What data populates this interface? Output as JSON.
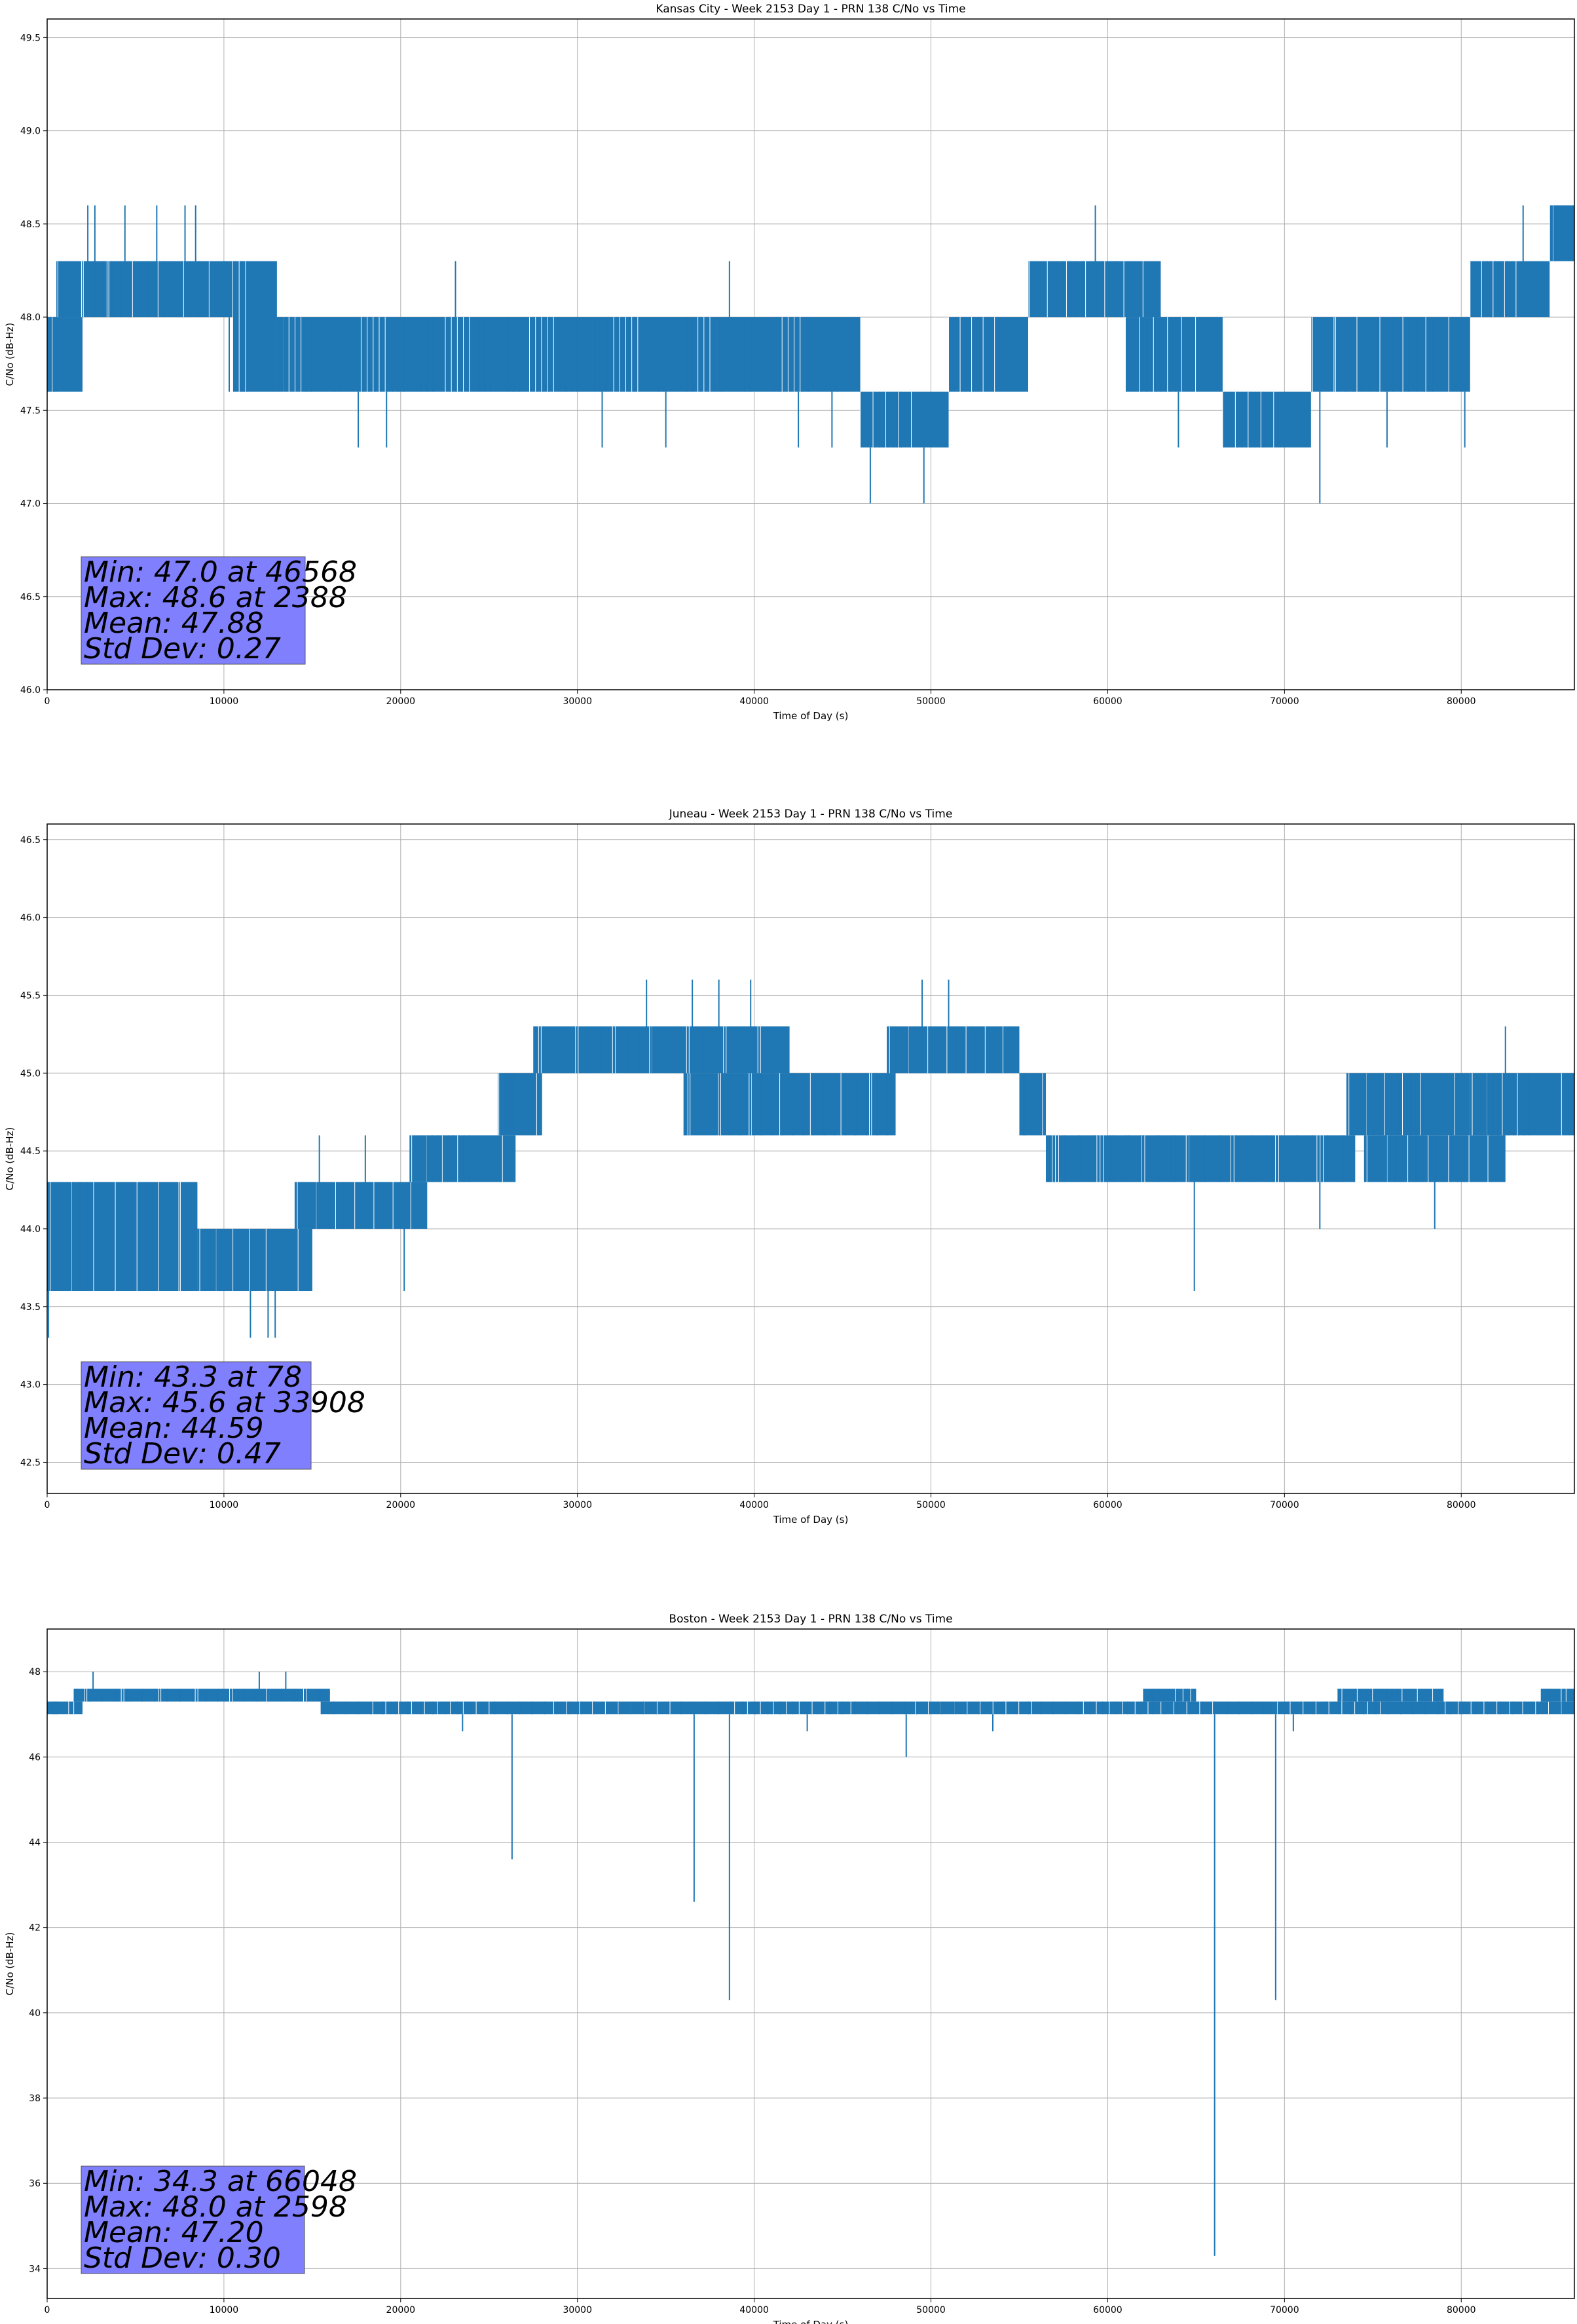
{
  "chart_data": [
    {
      "type": "line",
      "title": "Kansas City - Week 2153 Day 1 - PRN 138 C/No vs Time",
      "xlabel": "Time of Day (s)",
      "ylabel": "C/No (dB-Hz)",
      "xlim": [
        0,
        86400
      ],
      "ylim": [
        46.0,
        49.6
      ],
      "xticks": [
        0,
        10000,
        20000,
        30000,
        40000,
        50000,
        60000,
        70000,
        80000
      ],
      "yticks": [
        "46.0",
        "46.5",
        "47.0",
        "47.5",
        "48.0",
        "48.5",
        "49.0",
        "49.5"
      ],
      "grid": true,
      "series_color": "#1f77b4",
      "series": [
        {
          "segments": [
            {
              "x": [
                0,
                2000
              ],
              "lo": 47.6,
              "hi": 48.0
            },
            {
              "x": [
                500,
                10500
              ],
              "lo": 48.0,
              "hi": 48.3
            },
            {
              "x": [
                10500,
                13000
              ],
              "lo": 47.6,
              "hi": 48.3
            },
            {
              "x": [
                13000,
                46000
              ],
              "lo": 47.6,
              "hi": 48.0
            },
            {
              "x": [
                46000,
                51000
              ],
              "lo": 47.3,
              "hi": 47.6
            },
            {
              "x": [
                51000,
                55500
              ],
              "lo": 47.6,
              "hi": 48.0
            },
            {
              "x": [
                55500,
                63000
              ],
              "lo": 48.0,
              "hi": 48.3
            },
            {
              "x": [
                61000,
                66500
              ],
              "lo": 47.6,
              "hi": 48.0
            },
            {
              "x": [
                66500,
                71500
              ],
              "lo": 47.3,
              "hi": 47.6
            },
            {
              "x": [
                71500,
                80500
              ],
              "lo": 47.6,
              "hi": 48.0
            },
            {
              "x": [
                80500,
                85000
              ],
              "lo": 48.0,
              "hi": 48.3
            },
            {
              "x": [
                85000,
                86400
              ],
              "lo": 48.3,
              "hi": 48.6
            }
          ],
          "spikes": [
            [
              2300,
              48.6
            ],
            [
              2700,
              48.6
            ],
            [
              4400,
              48.6
            ],
            [
              6200,
              48.6
            ],
            [
              7800,
              48.6
            ],
            [
              8400,
              48.6
            ],
            [
              10300,
              47.6
            ],
            [
              17600,
              47.3
            ],
            [
              19200,
              47.3
            ],
            [
              23100,
              48.3
            ],
            [
              31400,
              47.3
            ],
            [
              35000,
              47.3
            ],
            [
              38600,
              48.3
            ],
            [
              42500,
              47.3
            ],
            [
              44400,
              47.3
            ],
            [
              46568,
              47.0
            ],
            [
              49600,
              47.0
            ],
            [
              59300,
              48.6
            ],
            [
              64000,
              47.3
            ],
            [
              72000,
              47.0
            ],
            [
              75800,
              47.3
            ],
            [
              80200,
              47.3
            ],
            [
              83500,
              48.6
            ]
          ]
        }
      ],
      "stats": [
        "Min: 47.0 at 46568",
        "Max: 48.6 at 2388",
        "Mean: 47.88",
        "Std Dev: 0.27"
      ],
      "stats_box_color": "#8080ff"
    },
    {
      "type": "line",
      "title": "Juneau - Week 2153 Day 1 - PRN 138 C/No vs Time",
      "xlabel": "Time of Day (s)",
      "ylabel": "C/No (dB-Hz)",
      "xlim": [
        0,
        86400
      ],
      "ylim": [
        42.3,
        46.6
      ],
      "xticks": [
        0,
        10000,
        20000,
        30000,
        40000,
        50000,
        60000,
        70000,
        80000
      ],
      "yticks": [
        "42.5",
        "43.0",
        "43.5",
        "44.0",
        "44.5",
        "45.0",
        "45.5",
        "46.0",
        "46.5"
      ],
      "grid": true,
      "series_color": "#1f77b4",
      "series": [
        {
          "segments": [
            {
              "x": [
                0,
                8500
              ],
              "lo": 43.6,
              "hi": 44.3
            },
            {
              "x": [
                8500,
                15000
              ],
              "lo": 43.6,
              "hi": 44.0
            },
            {
              "x": [
                14000,
                21500
              ],
              "lo": 44.0,
              "hi": 44.3
            },
            {
              "x": [
                20500,
                26500
              ],
              "lo": 44.3,
              "hi": 44.6
            },
            {
              "x": [
                25500,
                28000
              ],
              "lo": 44.6,
              "hi": 45.0
            },
            {
              "x": [
                27500,
                42000
              ],
              "lo": 45.0,
              "hi": 45.3
            },
            {
              "x": [
                36000,
                48000
              ],
              "lo": 44.6,
              "hi": 45.0
            },
            {
              "x": [
                47500,
                55000
              ],
              "lo": 45.0,
              "hi": 45.3
            },
            {
              "x": [
                55000,
                56500
              ],
              "lo": 44.6,
              "hi": 45.0
            },
            {
              "x": [
                56500,
                74000
              ],
              "lo": 44.3,
              "hi": 44.6
            },
            {
              "x": [
                73500,
                80500
              ],
              "lo": 44.6,
              "hi": 45.0
            },
            {
              "x": [
                74500,
                82500
              ],
              "lo": 44.3,
              "hi": 44.6
            },
            {
              "x": [
                80500,
                86400
              ],
              "lo": 44.6,
              "hi": 45.0
            }
          ],
          "spikes": [
            [
              78,
              43.3
            ],
            [
              11500,
              43.3
            ],
            [
              12500,
              43.3
            ],
            [
              12900,
              43.3
            ],
            [
              15400,
              44.6
            ],
            [
              18000,
              44.6
            ],
            [
              20200,
              43.6
            ],
            [
              33908,
              45.6
            ],
            [
              36500,
              45.6
            ],
            [
              38000,
              45.6
            ],
            [
              39800,
              45.6
            ],
            [
              49500,
              45.6
            ],
            [
              51000,
              45.6
            ],
            [
              64900,
              43.6
            ],
            [
              72000,
              44.0
            ],
            [
              78500,
              44.0
            ],
            [
              82500,
              45.3
            ]
          ]
        }
      ],
      "stats": [
        "Min: 43.3 at 78",
        "Max: 45.6 at 33908",
        "Mean: 44.59",
        "Std Dev: 0.47"
      ],
      "stats_box_color": "#8080ff"
    },
    {
      "type": "line",
      "title": "Boston - Week 2153 Day 1 - PRN 138 C/No vs Time",
      "xlabel": "Time of Day (s)",
      "ylabel": "C/No (dB-Hz)",
      "xlim": [
        0,
        86400
      ],
      "ylim": [
        33.3,
        49.0
      ],
      "xticks": [
        0,
        10000,
        20000,
        30000,
        40000,
        50000,
        60000,
        70000,
        80000
      ],
      "yticks": [
        "34",
        "36",
        "38",
        "40",
        "42",
        "44",
        "46",
        "48"
      ],
      "grid": true,
      "series_color": "#1f77b4",
      "series": [
        {
          "segments": [
            {
              "x": [
                0,
                2000
              ],
              "lo": 47.0,
              "hi": 47.3
            },
            {
              "x": [
                1500,
                16000
              ],
              "lo": 47.3,
              "hi": 47.6
            },
            {
              "x": [
                15500,
                86400
              ],
              "lo": 47.0,
              "hi": 47.3
            },
            {
              "x": [
                62000,
                65000
              ],
              "lo": 47.3,
              "hi": 47.6
            },
            {
              "x": [
                73000,
                79000
              ],
              "lo": 47.3,
              "hi": 47.6
            },
            {
              "x": [
                84500,
                86400
              ],
              "lo": 47.3,
              "hi": 47.6
            }
          ],
          "spikes": [
            [
              2598,
              48.0
            ],
            [
              12000,
              48.0
            ],
            [
              13500,
              48.0
            ],
            [
              23500,
              46.6
            ],
            [
              26300,
              43.6
            ],
            [
              36600,
              42.6
            ],
            [
              38600,
              40.3
            ],
            [
              43000,
              46.6
            ],
            [
              48600,
              46.0
            ],
            [
              53500,
              46.6
            ],
            [
              66048,
              34.3
            ],
            [
              69500,
              40.3
            ],
            [
              70500,
              46.6
            ]
          ]
        }
      ],
      "stats": [
        "Min: 34.3 at 66048",
        "Max: 48.0 at 2598",
        "Mean: 47.20",
        "Std Dev: 0.30"
      ],
      "stats_box_color": "#8080ff"
    }
  ]
}
